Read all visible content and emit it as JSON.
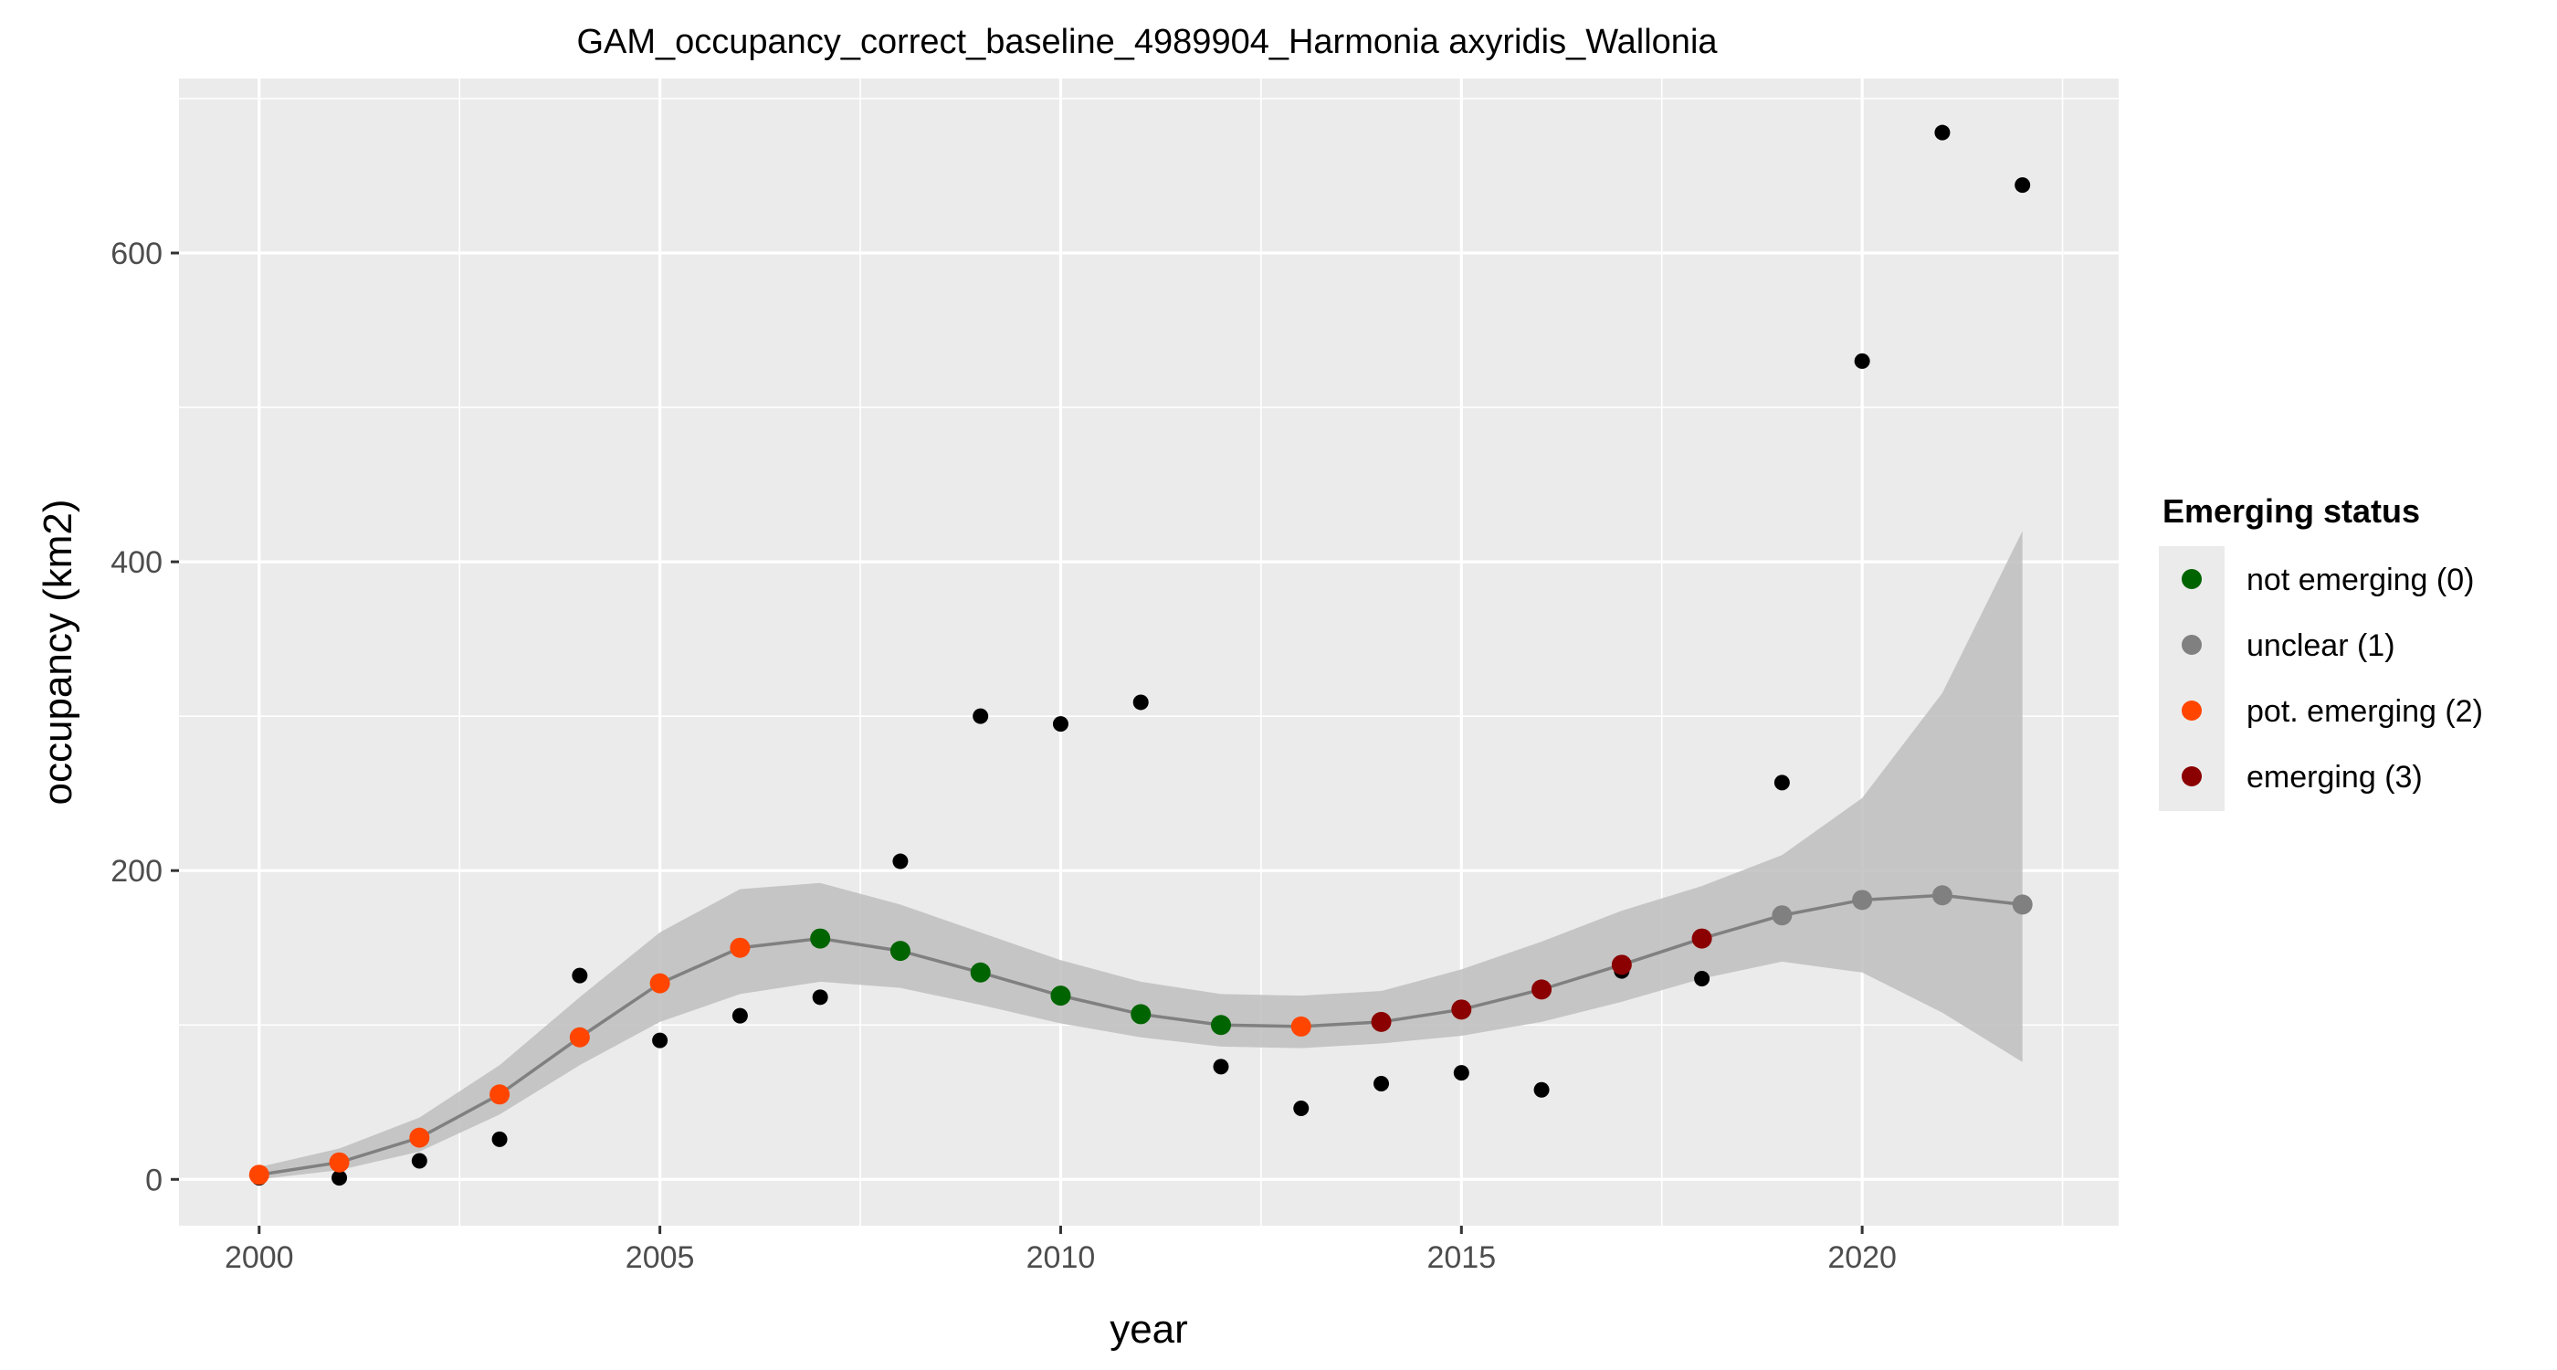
{
  "chart_data": {
    "type": "scatter",
    "title": "GAM_occupancy_correct_baseline_4989904_Harmonia axyridis_Wallonia",
    "xlabel": "year",
    "ylabel": "occupancy (km2)",
    "xlim": [
      1999,
      2023.2
    ],
    "ylim": [
      -30,
      713
    ],
    "x_ticks": [
      2000,
      2005,
      2010,
      2015,
      2020
    ],
    "y_ticks": [
      0,
      200,
      400,
      600
    ],
    "legend_title": "Emerging status",
    "legend_position": "right",
    "status_legend": [
      {
        "code": 0,
        "label": "not emerging (0)",
        "color": "#006400"
      },
      {
        "code": 1,
        "label": "unclear (1)",
        "color": "#808080"
      },
      {
        "code": 2,
        "label": "pot. emerging (2)",
        "color": "#FF4500"
      },
      {
        "code": 3,
        "label": "emerging (3)",
        "color": "#8B0000"
      }
    ],
    "years": [
      2000,
      2001,
      2002,
      2003,
      2004,
      2005,
      2006,
      2007,
      2008,
      2009,
      2010,
      2011,
      2012,
      2013,
      2014,
      2015,
      2016,
      2017,
      2018,
      2019,
      2020,
      2021,
      2022
    ],
    "observed": [
      1,
      1,
      12,
      26,
      132,
      90,
      106,
      118,
      206,
      300,
      295,
      309,
      73,
      46,
      62,
      69,
      58,
      135,
      130,
      257,
      530,
      678,
      644
    ],
    "fit": [
      3,
      11,
      27,
      55,
      92,
      127,
      150,
      156,
      148,
      134,
      119,
      107,
      100,
      99,
      102,
      110,
      123,
      139,
      156,
      171,
      181,
      184,
      178
    ],
    "fit_lower": [
      0,
      6,
      18,
      42,
      74,
      102,
      120,
      128,
      124,
      113,
      101,
      92,
      86,
      85,
      88,
      93,
      102,
      115,
      130,
      141,
      134,
      108,
      76
    ],
    "fit_upper": [
      8,
      20,
      40,
      74,
      118,
      160,
      188,
      192,
      178,
      160,
      142,
      128,
      120,
      119,
      122,
      136,
      154,
      174,
      190,
      210,
      247,
      315,
      420
    ],
    "status": [
      2,
      2,
      2,
      2,
      2,
      2,
      2,
      0,
      0,
      0,
      0,
      0,
      0,
      2,
      3,
      3,
      3,
      3,
      3,
      1,
      1,
      1,
      1
    ],
    "colors": {
      "panel": "#EBEBEB",
      "grid": "#FFFFFF",
      "ribbon": "#BEBEBE",
      "fit_line": "#808080",
      "observed_point": "#000000"
    }
  }
}
